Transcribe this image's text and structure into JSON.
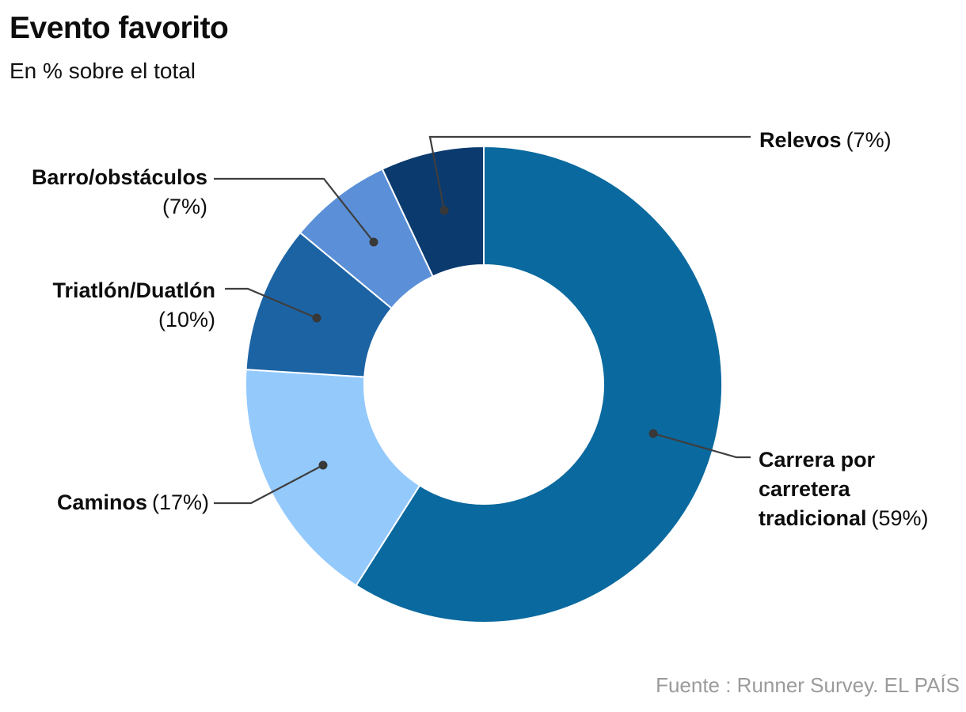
{
  "chart_data": {
    "type": "pie",
    "donut": true,
    "title": "Evento favorito",
    "subtitle": "En % sobre el total",
    "source": "Fuente : Runner Survey. EL PAÍS",
    "units": "%",
    "start_angle_deg": 0,
    "direction": "clockwise",
    "inner_radius_ratio": 0.5,
    "legend_position": "callout-labels",
    "leader_line_color": "#3e3e3e",
    "text_color": "#0d0d0d",
    "source_color": "#9b9b9b",
    "slices": [
      {
        "key": "carrera",
        "label": "Carrera por carretera tradicional",
        "value": 59,
        "pct_label": "(59%)",
        "color": "#0A699E"
      },
      {
        "key": "caminos",
        "label": "Caminos",
        "value": 17,
        "pct_label": "(17%)",
        "color": "#94C9FC"
      },
      {
        "key": "triatlon",
        "label": "Triatlón/Duatlón",
        "value": 10,
        "pct_label": "(10%)",
        "color": "#1C63A4"
      },
      {
        "key": "barro",
        "label": "Barro/obstáculos",
        "value": 7,
        "pct_label": "(7%)",
        "color": "#5B90D8"
      },
      {
        "key": "relevos",
        "label": "Relevos",
        "value": 7,
        "pct_label": "(7%)",
        "color": "#0A3A6E"
      }
    ]
  }
}
